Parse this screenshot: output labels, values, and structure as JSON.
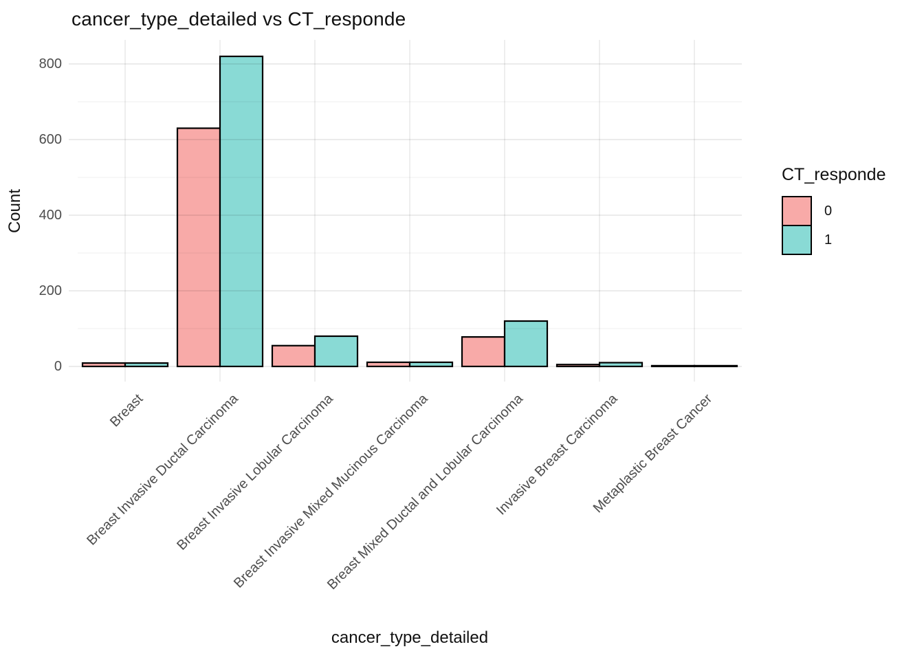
{
  "chart_data": {
    "type": "bar",
    "title": "cancer_type_detailed vs CT_responde",
    "xlabel": "cancer_type_detailed",
    "ylabel": "Count",
    "legend_title": "CT_responde",
    "legend_position": "right",
    "grid": true,
    "categories": [
      "Breast",
      "Breast Invasive Ductal Carcinoma",
      "Breast Invasive Lobular Carcinoma",
      "Breast Invasive Mixed Mucinous Carcinoma",
      "Breast Mixed Ductal and Lobular Carcinoma",
      "Invasive Breast Carcinoma",
      "Metaplastic Breast Cancer"
    ],
    "series": [
      {
        "name": "0",
        "color": "#F8AAA8",
        "values": [
          9,
          630,
          55,
          11,
          78,
          5,
          2
        ]
      },
      {
        "name": "1",
        "color": "#89DAD5",
        "values": [
          9,
          820,
          80,
          11,
          120,
          10,
          2
        ]
      }
    ],
    "ylim": [
      0,
      860
    ],
    "yticks": [
      0,
      200,
      400,
      600,
      800
    ],
    "minor_yticks": [
      100,
      300,
      500,
      700
    ],
    "bar_outline_color": "#000000",
    "tick_label_color": "#4d4d4d",
    "gridline_color": "#ebebeb"
  }
}
